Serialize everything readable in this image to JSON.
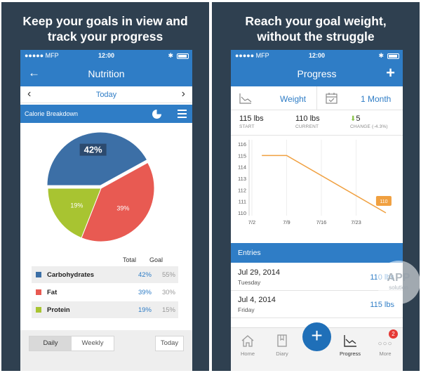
{
  "left": {
    "headline": [
      "Keep your goals in view and",
      "track your progress"
    ],
    "status": {
      "carrier": "●●●●● MFP",
      "time": "12:00"
    },
    "nav": {
      "title": "Nutrition",
      "back_icon": "back-arrow-icon"
    },
    "date_nav": {
      "label": "Today",
      "prev_icon": "chevron-left-icon",
      "next_icon": "chevron-right-icon"
    },
    "section": {
      "label": "Calorie Breakdown",
      "pie_icon": "pie-chart-icon",
      "list_icon": "list-icon"
    },
    "table": {
      "total_label": "Total",
      "goal_label": "Goal"
    },
    "macros": [
      {
        "name": "Carbohydrates",
        "total": "42%",
        "goal": "55%",
        "color": "#3c6fa6"
      },
      {
        "name": "Fat",
        "total": "39%",
        "goal": "30%",
        "color": "#e85a52"
      },
      {
        "name": "Protein",
        "total": "19%",
        "goal": "15%",
        "color": "#a8c431"
      }
    ],
    "pie_labels": [
      "42%",
      "39%",
      "19%"
    ],
    "footer": {
      "daily": "Daily",
      "weekly": "Weekly",
      "today": "Today"
    }
  },
  "right": {
    "headline": [
      "Reach your goal weight,",
      "without the struggle"
    ],
    "status": {
      "carrier": "●●●●● MFP",
      "time": "12:00"
    },
    "nav": {
      "title": "Progress",
      "add_icon": "plus-icon"
    },
    "toolbar": {
      "metric": "Weight",
      "range": "1 Month",
      "metric_icon": "chart-icon",
      "range_icon": "calendar-icon"
    },
    "stats": [
      {
        "value": "115 lbs",
        "label": "START"
      },
      {
        "value": "110 lbs",
        "label": "CURRENT"
      },
      {
        "value": "5",
        "label": "CHANGE (-4.3%)"
      }
    ],
    "entries_label": "Entries",
    "entries": [
      {
        "date": "Jul 29, 2014",
        "weekday": "Tuesday",
        "value": "110 lbs"
      },
      {
        "date": "Jul 4, 2014",
        "weekday": "Friday",
        "value": "115 lbs"
      }
    ],
    "tabs": [
      {
        "label": "Home",
        "icon": "home-icon"
      },
      {
        "label": "Diary",
        "icon": "diary-icon"
      },
      {
        "label": "Progress",
        "icon": "progress-icon"
      },
      {
        "label": "More",
        "icon": "more-icon",
        "badge": "2"
      }
    ],
    "watermark": {
      "top": "APP",
      "bottom": "solution"
    }
  },
  "colors": {
    "accent": "#2f7dc6",
    "background": "#2f4050",
    "line": "#f0a040",
    "carbs": "#3c6fa6",
    "fat": "#e85a52",
    "protein": "#a8c431"
  },
  "chart_data": [
    {
      "type": "pie",
      "categories": [
        "Carbohydrates",
        "Fat",
        "Protein"
      ],
      "values": [
        42,
        39,
        19
      ]
    },
    {
      "type": "line",
      "x": [
        "7/4",
        "7/9",
        "7/29"
      ],
      "values": [
        115,
        115,
        110
      ],
      "xticks": [
        "7/2",
        "7/9",
        "7/16",
        "7/23"
      ],
      "yticks": [
        110,
        111,
        112,
        113,
        114,
        115,
        116
      ],
      "ylim": [
        110,
        116
      ],
      "end_label": "110"
    }
  ]
}
